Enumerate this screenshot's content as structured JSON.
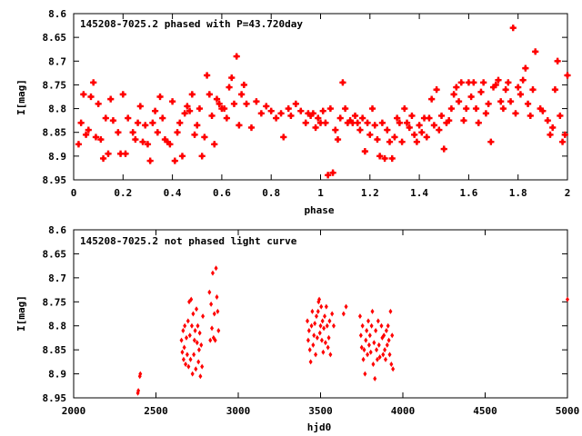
{
  "chart_data": [
    {
      "type": "scatter",
      "title": "145208-7025.2 phased with P=43.720day",
      "xlabel": "phase",
      "ylabel": "I[mag]",
      "xlim": [
        0,
        2
      ],
      "ylim": [
        8.95,
        8.6
      ],
      "y_inverted": true,
      "grid": false,
      "legend": "none",
      "marker": "filled-star",
      "color": "#ff0000",
      "x_ticks": [
        "0",
        "0.2",
        "0.4",
        "0.6",
        "0.8",
        "1",
        "1.2",
        "1.4",
        "1.6",
        "1.8",
        "2"
      ],
      "y_ticks": [
        "8.6",
        "8.65",
        "8.7",
        "8.75",
        "8.8",
        "8.85",
        "8.9",
        "8.95"
      ],
      "points": [
        [
          0.02,
          8.875
        ],
        [
          0.03,
          8.83
        ],
        [
          0.04,
          8.77
        ],
        [
          0.05,
          8.855
        ],
        [
          0.06,
          8.845
        ],
        [
          0.07,
          8.775
        ],
        [
          0.08,
          8.745
        ],
        [
          0.09,
          8.86
        ],
        [
          0.1,
          8.79
        ],
        [
          0.11,
          8.865
        ],
        [
          0.12,
          8.905
        ],
        [
          0.13,
          8.82
        ],
        [
          0.14,
          8.895
        ],
        [
          0.15,
          8.78
        ],
        [
          0.16,
          8.825
        ],
        [
          0.18,
          8.85
        ],
        [
          0.19,
          8.895
        ],
        [
          0.2,
          8.77
        ],
        [
          0.21,
          8.895
        ],
        [
          0.22,
          8.82
        ],
        [
          0.24,
          8.85
        ],
        [
          0.25,
          8.865
        ],
        [
          0.26,
          8.83
        ],
        [
          0.27,
          8.795
        ],
        [
          0.28,
          8.87
        ],
        [
          0.29,
          8.835
        ],
        [
          0.3,
          8.875
        ],
        [
          0.31,
          8.91
        ],
        [
          0.32,
          8.83
        ],
        [
          0.33,
          8.805
        ],
        [
          0.34,
          8.85
        ],
        [
          0.35,
          8.775
        ],
        [
          0.36,
          8.82
        ],
        [
          0.37,
          8.865
        ],
        [
          0.38,
          8.87
        ],
        [
          0.39,
          8.875
        ],
        [
          0.4,
          8.785
        ],
        [
          0.41,
          8.91
        ],
        [
          0.42,
          8.85
        ],
        [
          0.43,
          8.83
        ],
        [
          0.44,
          8.9
        ],
        [
          0.45,
          8.81
        ],
        [
          0.46,
          8.795
        ],
        [
          0.47,
          8.805
        ],
        [
          0.48,
          8.77
        ],
        [
          0.49,
          8.855
        ],
        [
          0.5,
          8.835
        ],
        [
          0.51,
          8.8
        ],
        [
          0.52,
          8.9
        ],
        [
          0.53,
          8.86
        ],
        [
          0.54,
          8.73
        ],
        [
          0.55,
          8.77
        ],
        [
          0.56,
          8.815
        ],
        [
          0.57,
          8.875
        ],
        [
          0.58,
          8.78
        ],
        [
          0.59,
          8.79
        ],
        [
          0.6,
          8.8
        ],
        [
          0.61,
          8.8
        ],
        [
          0.62,
          8.82
        ],
        [
          0.63,
          8.755
        ],
        [
          0.64,
          8.735
        ],
        [
          0.65,
          8.79
        ],
        [
          0.66,
          8.69
        ],
        [
          0.67,
          8.835
        ],
        [
          0.68,
          8.77
        ],
        [
          0.69,
          8.75
        ],
        [
          0.7,
          8.79
        ],
        [
          0.72,
          8.84
        ],
        [
          0.74,
          8.785
        ],
        [
          0.76,
          8.81
        ],
        [
          0.78,
          8.795
        ],
        [
          0.8,
          8.805
        ],
        [
          0.82,
          8.82
        ],
        [
          0.84,
          8.81
        ],
        [
          0.85,
          8.86
        ],
        [
          0.87,
          8.8
        ],
        [
          0.88,
          8.815
        ],
        [
          0.9,
          8.79
        ],
        [
          0.92,
          8.805
        ],
        [
          0.94,
          8.83
        ],
        [
          0.95,
          8.81
        ],
        [
          0.96,
          8.815
        ],
        [
          0.97,
          8.81
        ],
        [
          0.98,
          8.84
        ],
        [
          0.99,
          8.82
        ],
        [
          1.0,
          8.83
        ],
        [
          1.01,
          8.805
        ],
        [
          1.02,
          8.83
        ],
        [
          1.03,
          8.94
        ],
        [
          1.04,
          8.8
        ],
        [
          1.05,
          8.935
        ],
        [
          1.06,
          8.845
        ],
        [
          1.07,
          8.865
        ],
        [
          1.08,
          8.82
        ],
        [
          1.09,
          8.745
        ],
        [
          1.1,
          8.8
        ],
        [
          1.11,
          8.83
        ],
        [
          1.12,
          8.825
        ],
        [
          1.13,
          8.83
        ],
        [
          1.14,
          8.815
        ],
        [
          1.15,
          8.83
        ],
        [
          1.16,
          8.845
        ],
        [
          1.17,
          8.82
        ],
        [
          1.18,
          8.89
        ],
        [
          1.19,
          8.83
        ],
        [
          1.2,
          8.855
        ],
        [
          1.21,
          8.8
        ],
        [
          1.22,
          8.835
        ],
        [
          1.23,
          8.865
        ],
        [
          1.24,
          8.9
        ],
        [
          1.25,
          8.83
        ],
        [
          1.26,
          8.905
        ],
        [
          1.27,
          8.845
        ],
        [
          1.28,
          8.87
        ],
        [
          1.29,
          8.905
        ],
        [
          1.3,
          8.86
        ],
        [
          1.31,
          8.82
        ],
        [
          1.32,
          8.83
        ],
        [
          1.33,
          8.87
        ],
        [
          1.34,
          8.8
        ],
        [
          1.35,
          8.83
        ],
        [
          1.36,
          8.84
        ],
        [
          1.37,
          8.815
        ],
        [
          1.38,
          8.855
        ],
        [
          1.39,
          8.87
        ],
        [
          1.4,
          8.835
        ],
        [
          1.41,
          8.85
        ],
        [
          1.42,
          8.82
        ],
        [
          1.43,
          8.86
        ],
        [
          1.44,
          8.82
        ],
        [
          1.45,
          8.78
        ],
        [
          1.46,
          8.835
        ],
        [
          1.47,
          8.76
        ],
        [
          1.48,
          8.845
        ],
        [
          1.49,
          8.815
        ],
        [
          1.5,
          8.885
        ],
        [
          1.51,
          8.83
        ],
        [
          1.52,
          8.825
        ],
        [
          1.53,
          8.8
        ],
        [
          1.54,
          8.77
        ],
        [
          1.55,
          8.755
        ],
        [
          1.56,
          8.785
        ],
        [
          1.57,
          8.745
        ],
        [
          1.58,
          8.825
        ],
        [
          1.59,
          8.8
        ],
        [
          1.6,
          8.745
        ],
        [
          1.61,
          8.775
        ],
        [
          1.62,
          8.745
        ],
        [
          1.63,
          8.8
        ],
        [
          1.64,
          8.83
        ],
        [
          1.65,
          8.765
        ],
        [
          1.66,
          8.745
        ],
        [
          1.67,
          8.81
        ],
        [
          1.68,
          8.79
        ],
        [
          1.69,
          8.87
        ],
        [
          1.7,
          8.755
        ],
        [
          1.71,
          8.75
        ],
        [
          1.72,
          8.74
        ],
        [
          1.73,
          8.785
        ],
        [
          1.74,
          8.8
        ],
        [
          1.75,
          8.76
        ],
        [
          1.76,
          8.745
        ],
        [
          1.77,
          8.785
        ],
        [
          1.78,
          8.63
        ],
        [
          1.79,
          8.81
        ],
        [
          1.8,
          8.755
        ],
        [
          1.81,
          8.77
        ],
        [
          1.82,
          8.74
        ],
        [
          1.83,
          8.715
        ],
        [
          1.84,
          8.79
        ],
        [
          1.85,
          8.815
        ],
        [
          1.86,
          8.76
        ],
        [
          1.87,
          8.68
        ],
        [
          1.89,
          8.8
        ],
        [
          1.9,
          8.805
        ],
        [
          1.92,
          8.825
        ],
        [
          1.93,
          8.855
        ],
        [
          1.94,
          8.84
        ],
        [
          1.95,
          8.76
        ],
        [
          1.96,
          8.7
        ],
        [
          1.97,
          8.815
        ],
        [
          1.98,
          8.87
        ],
        [
          1.99,
          8.855
        ],
        [
          2.0,
          8.73
        ]
      ]
    },
    {
      "type": "scatter",
      "title": "145208-7025.2 not phased light curve",
      "xlabel": "hjd0",
      "ylabel": "I[mag]",
      "xlim": [
        2000,
        5000
      ],
      "ylim": [
        8.95,
        8.6
      ],
      "y_inverted": true,
      "grid": false,
      "legend": "none",
      "marker": "small-diamond",
      "color": "#ff0000",
      "x_ticks": [
        "2000",
        "2500",
        "3000",
        "3500",
        "4000",
        "4500",
        "5000"
      ],
      "y_ticks": [
        "8.6",
        "8.65",
        "8.7",
        "8.75",
        "8.8",
        "8.85",
        "8.9",
        "8.95"
      ],
      "points": [
        [
          2390,
          8.94
        ],
        [
          2393,
          8.935
        ],
        [
          2402,
          8.905
        ],
        [
          2405,
          8.9
        ],
        [
          2655,
          8.83
        ],
        [
          2660,
          8.855
        ],
        [
          2665,
          8.81
        ],
        [
          2668,
          8.87
        ],
        [
          2672,
          8.845
        ],
        [
          2675,
          8.8
        ],
        [
          2680,
          8.88
        ],
        [
          2685,
          8.825
        ],
        [
          2690,
          8.86
        ],
        [
          2695,
          8.79
        ],
        [
          2698,
          8.885
        ],
        [
          2702,
          8.75
        ],
        [
          2706,
          8.82
        ],
        [
          2710,
          8.87
        ],
        [
          2714,
          8.745
        ],
        [
          2718,
          8.8
        ],
        [
          2722,
          8.9
        ],
        [
          2726,
          8.775
        ],
        [
          2730,
          8.86
        ],
        [
          2734,
          8.83
        ],
        [
          2738,
          8.81
        ],
        [
          2742,
          8.89
        ],
        [
          2746,
          8.765
        ],
        [
          2750,
          8.835
        ],
        [
          2754,
          8.8
        ],
        [
          2758,
          8.875
        ],
        [
          2762,
          8.85
        ],
        [
          2766,
          8.815
        ],
        [
          2770,
          8.905
        ],
        [
          2775,
          8.84
        ],
        [
          2780,
          8.885
        ],
        [
          2785,
          8.78
        ],
        [
          2825,
          8.73
        ],
        [
          2830,
          8.83
        ],
        [
          2835,
          8.755
        ],
        [
          2840,
          8.805
        ],
        [
          2845,
          8.69
        ],
        [
          2850,
          8.825
        ],
        [
          2855,
          8.775
        ],
        [
          2860,
          8.83
        ],
        [
          2865,
          8.68
        ],
        [
          2870,
          8.74
        ],
        [
          2875,
          8.77
        ],
        [
          2880,
          8.81
        ],
        [
          3420,
          8.79
        ],
        [
          3425,
          8.83
        ],
        [
          3430,
          8.81
        ],
        [
          3435,
          8.85
        ],
        [
          3440,
          8.875
        ],
        [
          3445,
          8.8
        ],
        [
          3450,
          8.77
        ],
        [
          3455,
          8.84
        ],
        [
          3460,
          8.82
        ],
        [
          3465,
          8.795
        ],
        [
          3470,
          8.86
        ],
        [
          3475,
          8.78
        ],
        [
          3480,
          8.825
        ],
        [
          3485,
          8.77
        ],
        [
          3488,
          8.75
        ],
        [
          3492,
          8.745
        ],
        [
          3496,
          8.815
        ],
        [
          3500,
          8.8
        ],
        [
          3504,
          8.76
        ],
        [
          3508,
          8.83
        ],
        [
          3512,
          8.79
        ],
        [
          3516,
          8.855
        ],
        [
          3520,
          8.805
        ],
        [
          3525,
          8.78
        ],
        [
          3530,
          8.835
        ],
        [
          3535,
          8.76
        ],
        [
          3540,
          8.8
        ],
        [
          3545,
          8.845
        ],
        [
          3550,
          8.825
        ],
        [
          3555,
          8.79
        ],
        [
          3560,
          8.86
        ],
        [
          3570,
          8.775
        ],
        [
          3580,
          8.8
        ],
        [
          3640,
          8.775
        ],
        [
          3655,
          8.76
        ],
        [
          3740,
          8.78
        ],
        [
          3745,
          8.82
        ],
        [
          3750,
          8.845
        ],
        [
          3755,
          8.8
        ],
        [
          3760,
          8.87
        ],
        [
          3765,
          8.85
        ],
        [
          3770,
          8.9
        ],
        [
          3775,
          8.83
        ],
        [
          3780,
          8.81
        ],
        [
          3785,
          8.86
        ],
        [
          3790,
          8.79
        ],
        [
          3795,
          8.84
        ],
        [
          3800,
          8.82
        ],
        [
          3805,
          8.855
        ],
        [
          3810,
          8.8
        ],
        [
          3815,
          8.77
        ],
        [
          3820,
          8.88
        ],
        [
          3825,
          8.835
        ],
        [
          3830,
          8.91
        ],
        [
          3835,
          8.81
        ],
        [
          3840,
          8.85
        ],
        [
          3845,
          8.87
        ],
        [
          3850,
          8.79
        ],
        [
          3855,
          8.84
        ],
        [
          3860,
          8.865
        ],
        [
          3870,
          8.8
        ],
        [
          3875,
          8.825
        ],
        [
          3880,
          8.86
        ],
        [
          3885,
          8.82
        ],
        [
          3890,
          8.85
        ],
        [
          3895,
          8.87
        ],
        [
          3900,
          8.81
        ],
        [
          3905,
          8.84
        ],
        [
          3910,
          8.8
        ],
        [
          3915,
          8.83
        ],
        [
          3920,
          8.86
        ],
        [
          3925,
          8.77
        ],
        [
          3930,
          8.88
        ],
        [
          3935,
          8.82
        ],
        [
          3940,
          8.89
        ],
        [
          5000,
          8.745
        ]
      ]
    }
  ]
}
